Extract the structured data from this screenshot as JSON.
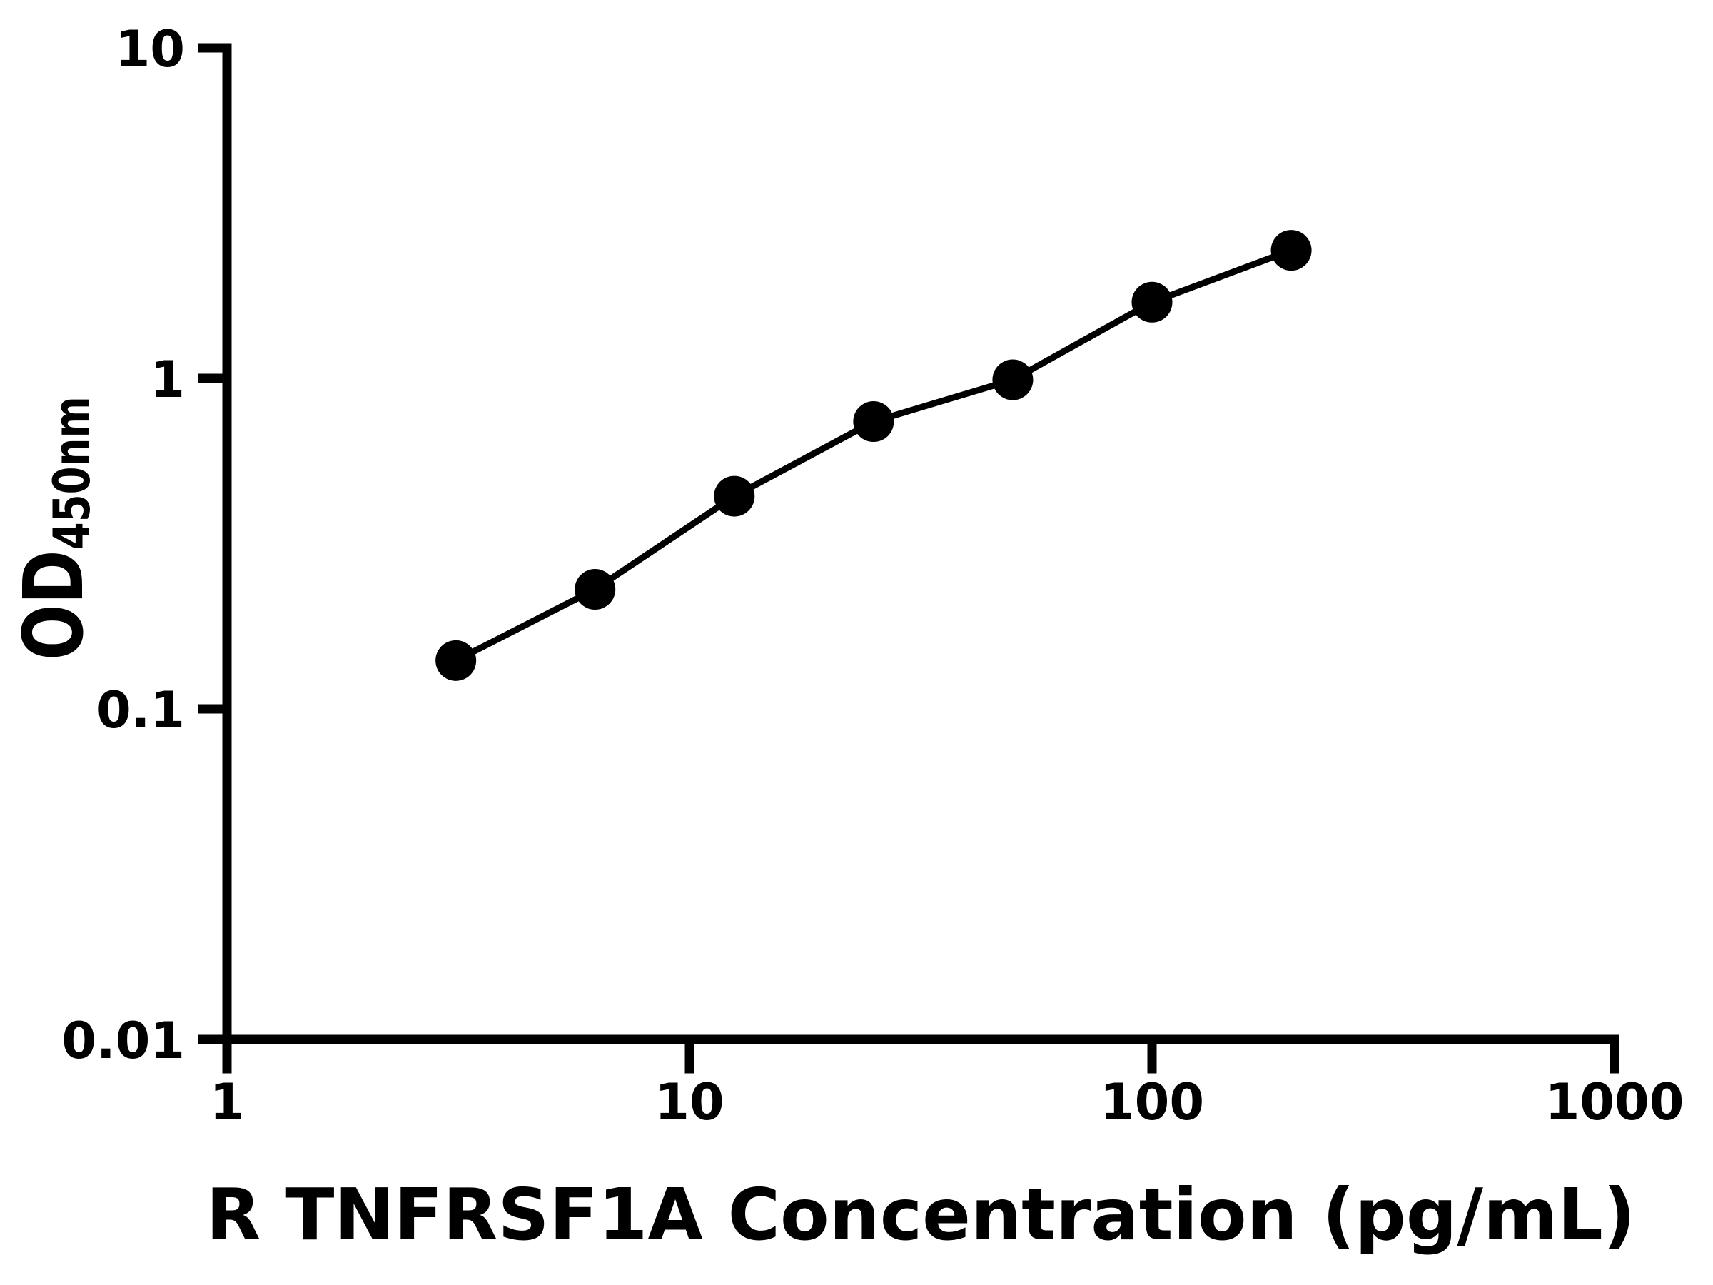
{
  "chart_data": {
    "type": "scatter",
    "subtype": "line-connected-standard-curve",
    "title": "",
    "xlabel": "R TNFRSF1A Concentration (pg/mL)",
    "ylabel_main": "OD",
    "ylabel_sub": "450nm",
    "x_scale": "log",
    "y_scale": "log",
    "xlim": [
      1,
      1000
    ],
    "ylim": [
      0.01,
      10
    ],
    "x_ticks": [
      1,
      10,
      100,
      1000
    ],
    "x_tick_labels": [
      "1",
      "10",
      "100",
      "1000"
    ],
    "y_ticks": [
      10,
      1,
      0.1,
      0.01
    ],
    "y_tick_labels": [
      "10",
      "1",
      "0.1",
      "0.01"
    ],
    "grid": false,
    "legend": null,
    "series": [
      {
        "name": "standard-curve",
        "marker": "filled-circle",
        "x": [
          3.125,
          6.25,
          12.5,
          25,
          50,
          100,
          200
        ],
        "y": [
          0.14,
          0.23,
          0.44,
          0.74,
          0.99,
          1.7,
          2.44
        ]
      }
    ],
    "colors": {
      "axis": "#000000",
      "line": "#000000",
      "marker": "#000000",
      "text": "#000000",
      "background": "#ffffff"
    }
  }
}
